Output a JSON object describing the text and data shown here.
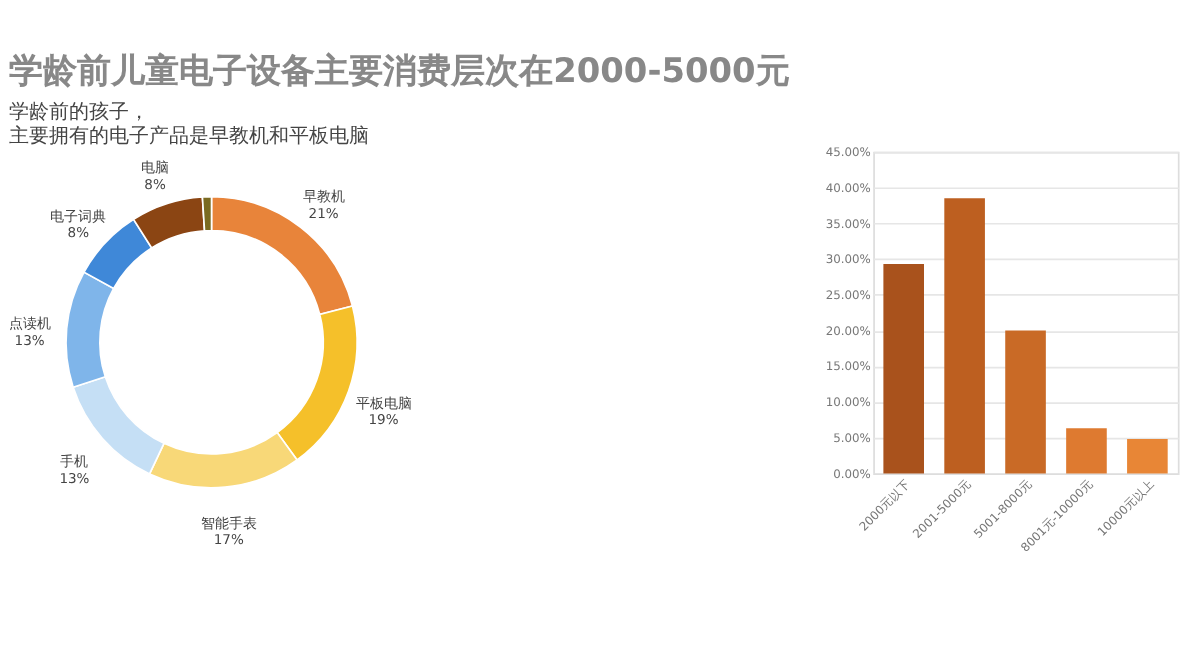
{
  "chart_data": [
    {
      "type": "donut",
      "title": "学龄前儿童电子设备主要消费层次在2000-5000元",
      "subtitle": "学龄前的孩子，主要拥有的电子产品是早教机和平板电脑",
      "categories": [
        "早教机",
        "平板电脑",
        "智能手表",
        "手机",
        "点读机",
        "电子词典",
        "电脑",
        null
      ],
      "values": [
        21,
        19,
        17,
        13,
        13,
        8,
        8,
        1
      ],
      "value_labels": [
        "21%",
        "19%",
        "17%",
        "13%",
        "13%",
        "8%",
        "8%",
        null
      ],
      "colors": [
        "#e8843a",
        "#f5c02a",
        "#f8d878",
        "#c5dff5",
        "#7fb5ea",
        "#3f88d8",
        "#8b4513",
        "#7a6a20"
      ],
      "legend": false
    },
    {
      "type": "bar",
      "categories": [
        "2000元以下",
        "2001-5000元",
        "5001-8000元",
        "8001元-10000元",
        "10000元以上"
      ],
      "values": [
        29.3,
        38.5,
        20,
        6.3,
        4.8
      ],
      "colors": [
        "#a9521c",
        "#bd5f20",
        "#c96a26",
        "#de7a30",
        "#e88636"
      ],
      "ylim": [
        0,
        45
      ],
      "yticks": [
        {
          "value": 0,
          "label": "0.00%"
        },
        {
          "value": 5,
          "label": "5.00%"
        },
        {
          "value": 10,
          "label": "10.00%"
        },
        {
          "value": 15,
          "label": "15.00%"
        },
        {
          "value": 20,
          "label": "20.00%"
        },
        {
          "value": 25,
          "label": "25.00%"
        },
        {
          "value": 30,
          "label": "30.00%"
        },
        {
          "value": 35,
          "label": "35.00%"
        },
        {
          "value": 40,
          "label": "40.00%"
        },
        {
          "value": 45,
          "label": "45.00%"
        }
      ],
      "grid": "y",
      "legend": false
    }
  ]
}
